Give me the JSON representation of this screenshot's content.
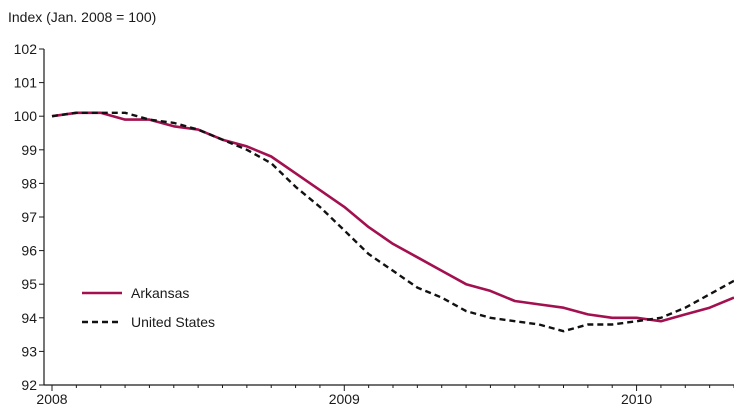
{
  "chart_data": {
    "type": "line",
    "title": "",
    "ylabel": "Index (Jan. 2008 = 100)",
    "xlabel": "",
    "ylim": [
      92,
      102
    ],
    "yticks": [
      92,
      93,
      94,
      95,
      96,
      97,
      98,
      99,
      100,
      101,
      102
    ],
    "xlim": [
      "2008-01",
      "2010-05"
    ],
    "xticks": [
      {
        "label": "2008",
        "at": "2008-01"
      },
      {
        "label": "2009",
        "at": "2009-01"
      },
      {
        "label": "2010",
        "at": "2010-01"
      }
    ],
    "grid": false,
    "legend": "bottom-left",
    "x": [
      "2008-01",
      "2008-02",
      "2008-03",
      "2008-04",
      "2008-05",
      "2008-06",
      "2008-07",
      "2008-08",
      "2008-09",
      "2008-10",
      "2008-11",
      "2008-12",
      "2009-01",
      "2009-02",
      "2009-03",
      "2009-04",
      "2009-05",
      "2009-06",
      "2009-07",
      "2009-08",
      "2009-09",
      "2009-10",
      "2009-11",
      "2009-12",
      "2010-01",
      "2010-02",
      "2010-03",
      "2010-04",
      "2010-05"
    ],
    "series": [
      {
        "name": "Arkansas",
        "color": "#a3104f",
        "style": "solid",
        "values": [
          100.0,
          100.1,
          100.1,
          99.9,
          99.9,
          99.7,
          99.6,
          99.3,
          99.1,
          98.8,
          98.3,
          97.8,
          97.3,
          96.7,
          96.2,
          95.8,
          95.4,
          95.0,
          94.8,
          94.5,
          94.4,
          94.3,
          94.1,
          94.0,
          94.0,
          93.9,
          94.1,
          94.3,
          94.6
        ]
      },
      {
        "name": "United States",
        "color": "#111111",
        "style": "dashed",
        "values": [
          100.0,
          100.1,
          100.1,
          100.1,
          99.9,
          99.8,
          99.6,
          99.3,
          99.0,
          98.6,
          97.9,
          97.3,
          96.6,
          95.9,
          95.4,
          94.9,
          94.6,
          94.2,
          94.0,
          93.9,
          93.8,
          93.6,
          93.8,
          93.8,
          93.9,
          94.0,
          94.3,
          94.7,
          95.1
        ]
      }
    ]
  }
}
